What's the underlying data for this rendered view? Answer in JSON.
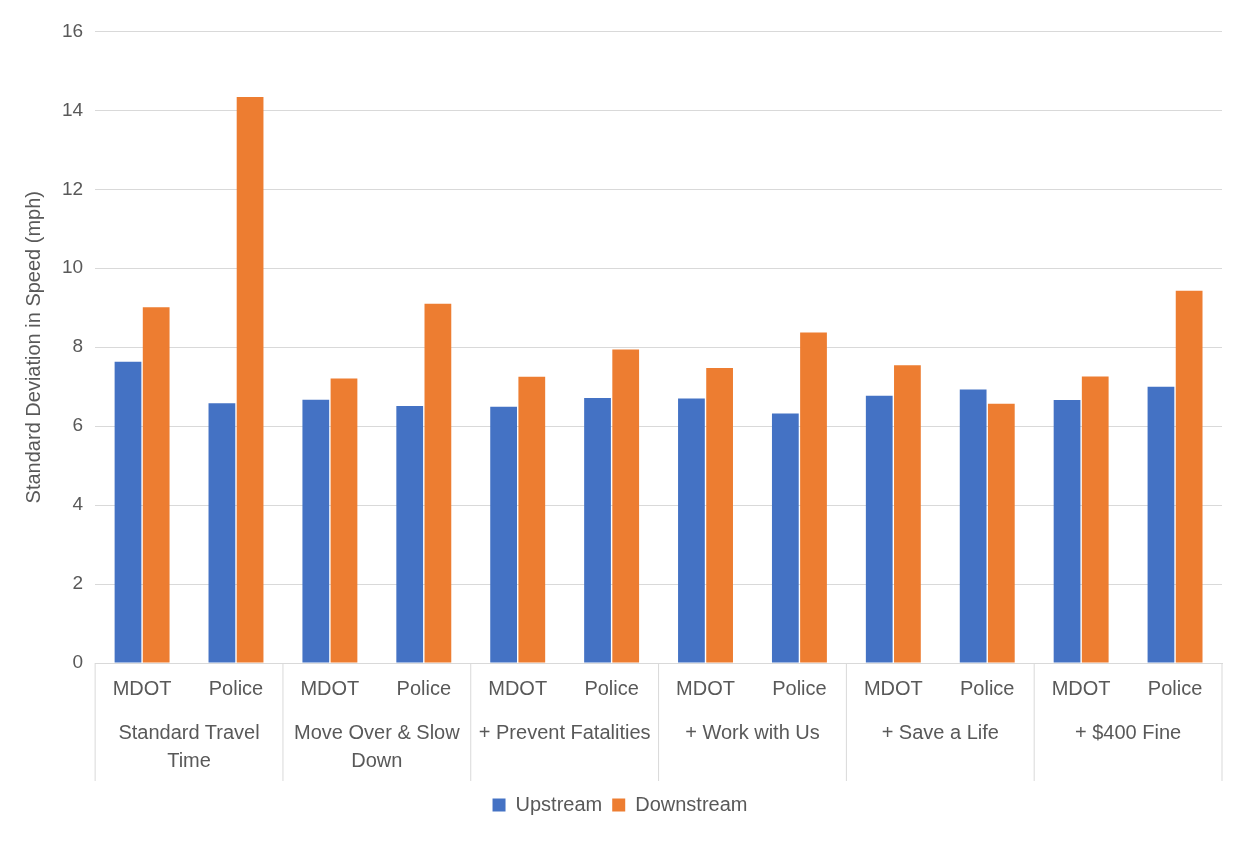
{
  "chart_data": {
    "type": "bar",
    "ylabel": "Standard Deviation in Speed (mph)",
    "categories": [
      "MDOT",
      "Police",
      "MDOT",
      "Police",
      "MDOT",
      "Police",
      "MDOT",
      "Police",
      "MDOT",
      "Police",
      "MDOT",
      "Police"
    ],
    "annotations": [
      "Standard Travel Time",
      "Move Over & Slow Down",
      "+ Prevent Fatalities",
      "+ Work with Us",
      "+ Save a Life",
      "+ $400 Fine"
    ],
    "series": [
      {
        "name": "Upstream",
        "color": "#4472c4",
        "values": [
          7.63,
          6.58,
          6.67,
          6.51,
          6.49,
          6.71,
          6.7,
          6.32,
          6.77,
          6.93,
          6.66,
          7.0
        ]
      },
      {
        "name": "Downstream",
        "color": "#ed7d31",
        "values": [
          9.01,
          14.34,
          7.21,
          9.1,
          7.25,
          7.94,
          7.47,
          8.37,
          7.54,
          6.57,
          7.26,
          9.43
        ]
      }
    ],
    "ylim": [
      0,
      16
    ],
    "yticks": [
      0,
      2,
      4,
      6,
      8,
      10,
      12,
      14,
      16
    ],
    "grid": "y",
    "legend": "bottom"
  }
}
